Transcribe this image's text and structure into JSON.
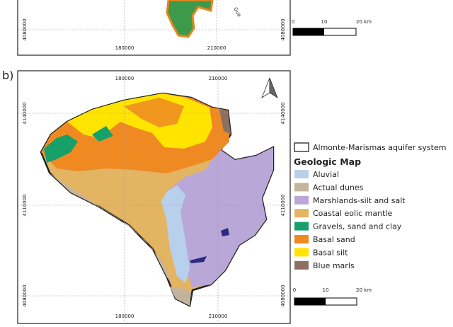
{
  "panel_a": {
    "river_label": "Gua",
    "left_label": "4080000",
    "right_label": "4080000",
    "bottom_labels": [
      "180000",
      "210000"
    ],
    "scale": [
      "0",
      "10",
      "20 km"
    ]
  },
  "panel_b": {
    "label": "b)",
    "top_labels": [
      "180000",
      "210000"
    ],
    "bottom_labels": [
      "180000",
      "210000"
    ],
    "left_labels": [
      "4140000",
      "4110000",
      "4080000"
    ],
    "right_labels": [
      "4140000",
      "4110000",
      "4080000"
    ],
    "scale": [
      "0",
      "10",
      "20 km"
    ]
  },
  "legend": {
    "boundary": "Almonte-Marismas aquifer system",
    "title": "Geologic Map",
    "items": [
      {
        "label": "Aluvial",
        "color": "#b8d0ec"
      },
      {
        "label": "Actual dunes",
        "color": "#c3b49d"
      },
      {
        "label": "Marshlands-silt and salt",
        "color": "#b9a7d8"
      },
      {
        "label": "Coastal eolic mantle",
        "color": "#e3b462"
      },
      {
        "label": "Gravels, sand and clay",
        "color": "#16a06a"
      },
      {
        "label": "Basal sand",
        "color": "#ef8a22"
      },
      {
        "label": "Basal silt",
        "color": "#ffe400"
      },
      {
        "label": "Blue marls",
        "color": "#8b6f60"
      }
    ]
  }
}
